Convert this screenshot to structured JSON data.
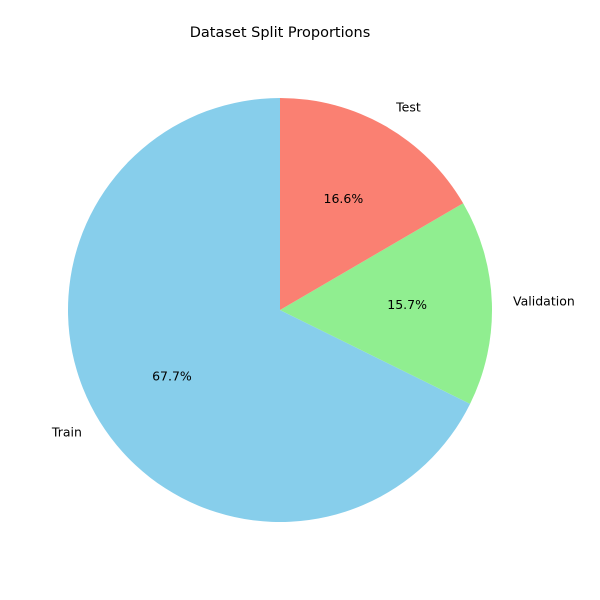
{
  "chart_data": {
    "type": "pie",
    "title": "Dataset Split Proportions",
    "slices": [
      {
        "label": "Train",
        "value": 67.7,
        "pct_label": "67.7%",
        "color": "#87CEEB"
      },
      {
        "label": "Validation",
        "value": 15.7,
        "pct_label": "15.7%",
        "color": "#90EE90"
      },
      {
        "label": "Test",
        "value": 16.6,
        "pct_label": "16.6%",
        "color": "#FA8072"
      }
    ],
    "start_angle": 90,
    "direction": "counterclockwise",
    "legend": "none"
  }
}
